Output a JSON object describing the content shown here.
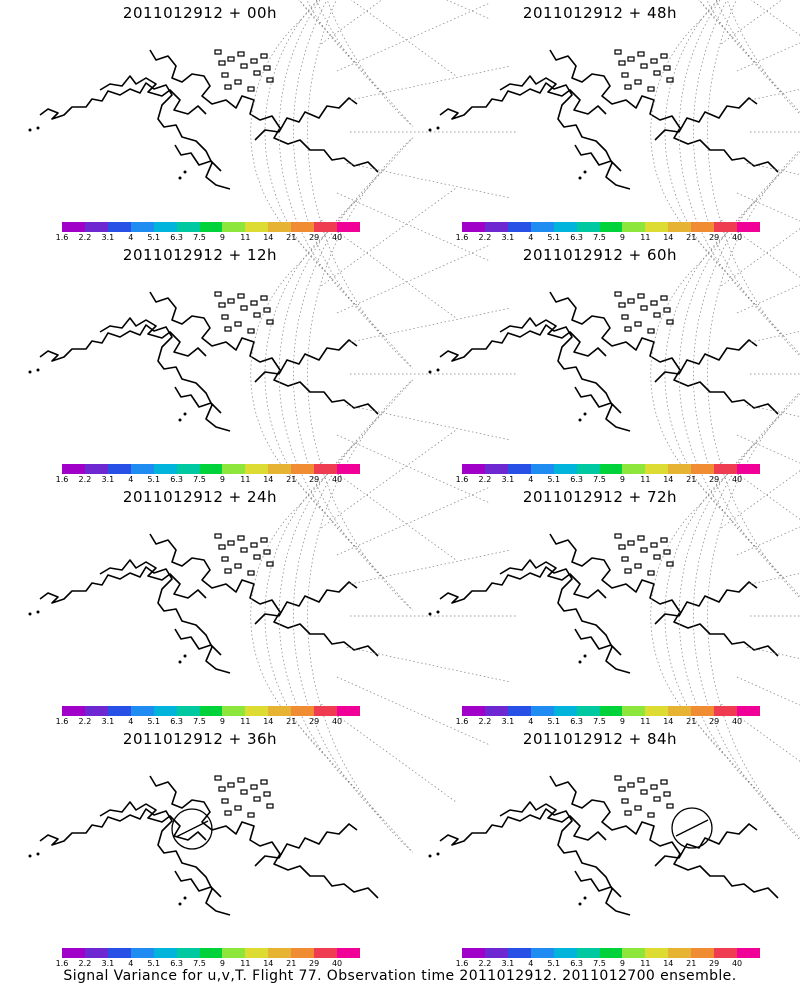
{
  "panels": [
    {
      "title": "2011012912 + 00h",
      "hours": 0,
      "circle": false
    },
    {
      "title": "2011012912 + 48h",
      "hours": 48,
      "circle": false
    },
    {
      "title": "2011012912 + 12h",
      "hours": 12,
      "circle": false
    },
    {
      "title": "2011012912 + 60h",
      "hours": 60,
      "circle": false
    },
    {
      "title": "2011012912 + 24h",
      "hours": 24,
      "circle": false
    },
    {
      "title": "2011012912 + 72h",
      "hours": 72,
      "circle": false
    },
    {
      "title": "2011012912 + 36h",
      "hours": 36,
      "circle": true
    },
    {
      "title": "2011012912 + 84h",
      "hours": 84,
      "circle": true
    }
  ],
  "colorbar": {
    "labels": [
      "1.6",
      "2.2",
      "3.1",
      "4",
      "5.1",
      "6.3",
      "7.5",
      "9",
      "11",
      "14",
      "21",
      "29",
      "40"
    ],
    "colors": [
      "#a000c8",
      "#6e28d2",
      "#2850e6",
      "#1e8cf0",
      "#00b4dc",
      "#00c8a0",
      "#00d23c",
      "#8ce63c",
      "#dcdc32",
      "#e6b432",
      "#f08c32",
      "#f03c50",
      "#f00096"
    ]
  },
  "footer": "Signal Variance for u,v,T. Flight 77. Observation time 2011012912. 2011012700 ensemble."
}
